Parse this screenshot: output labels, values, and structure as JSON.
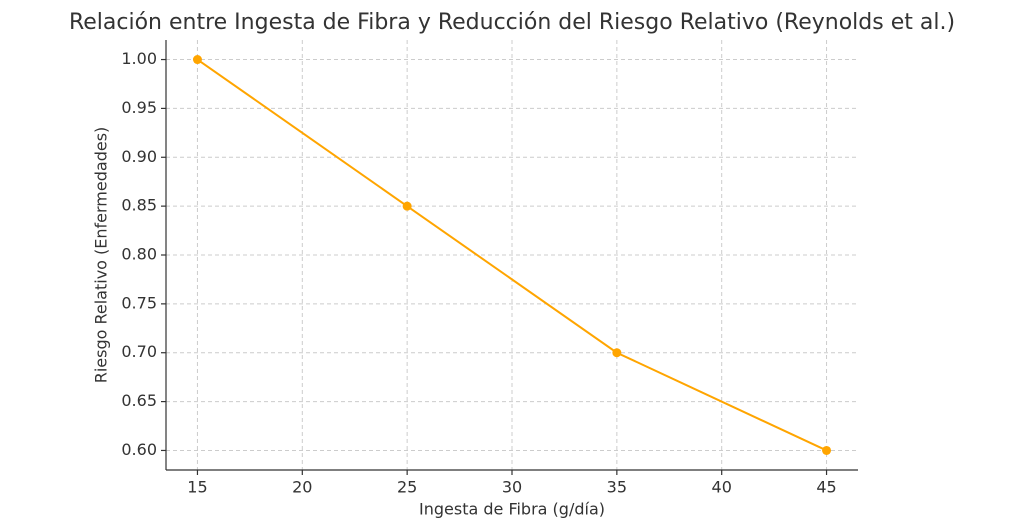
{
  "chart_data": {
    "type": "line",
    "title": "Relación entre Ingesta de Fibra y Reducción del Riesgo Relativo (Reynolds et al.)",
    "x_label": "Ingesta de Fibra (g/día)",
    "y_label": "Riesgo Relativo (Enfermedades)",
    "x": [
      15,
      25,
      35,
      45
    ],
    "series": [
      {
        "name": "Riesgo Relativo",
        "color": "#ffa500",
        "values": [
          1,
          0.85,
          0.7,
          0.6
        ]
      }
    ],
    "xlim": [
      13.5,
      46.5
    ],
    "ylim": [
      0.58,
      1.02
    ],
    "xticks": [
      15,
      20,
      25,
      30,
      35,
      40,
      45
    ],
    "yticks": [
      {
        "value": 0.6,
        "label": "0.60"
      },
      0.65,
      {
        "value": 0.7,
        "label": "0.70"
      },
      0.75,
      {
        "value": 0.8,
        "label": "0.80"
      },
      0.85,
      {
        "value": 0.9,
        "label": "0.90"
      },
      0.95,
      {
        "value": 1,
        "label": "1.00"
      }
    ],
    "grid": true
  }
}
